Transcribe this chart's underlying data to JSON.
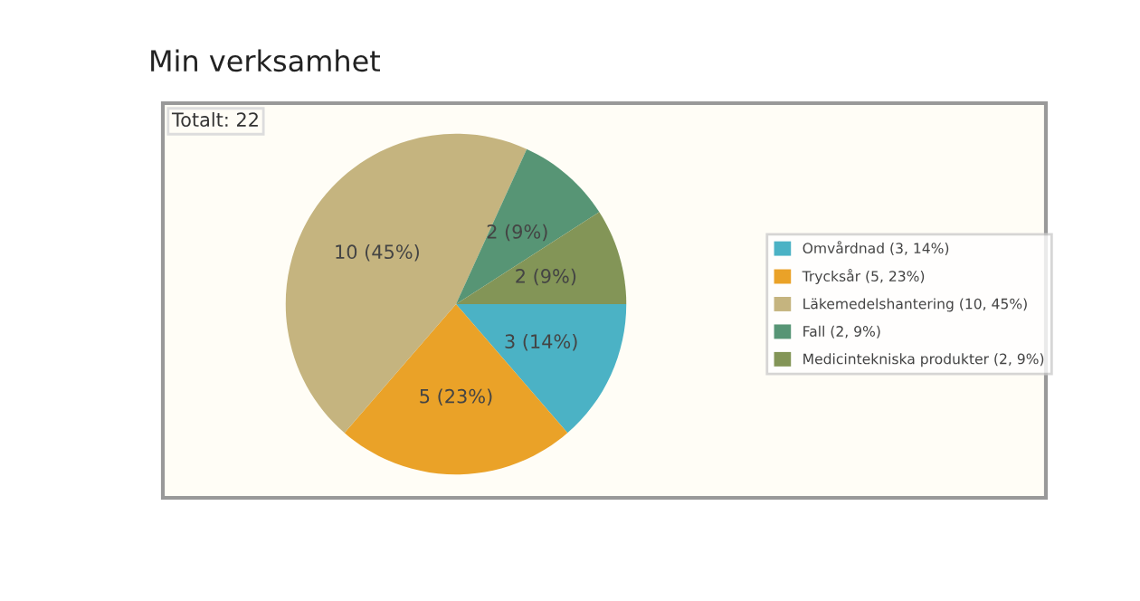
{
  "chart_data": {
    "type": "pie",
    "title": "Min verksamhet",
    "annotations": [
      "Totalt: 22"
    ],
    "categories": [
      "Omvårdnad (3, 14%)",
      "Trycksår (5, 23%)",
      "Läkemedelshantering (10, 45%)",
      "Fall (2, 9%)",
      "Medicintekniska produkter (2, 9%)"
    ],
    "values": [
      3,
      5,
      10,
      2,
      2
    ],
    "value_labels": [
      "3 (14%)",
      "5 (23%)",
      "10 (45%)",
      "2 (9%)",
      "2 (9%)"
    ],
    "colors": [
      "#4bb2c5",
      "#eaa228",
      "#c5b47f",
      "#579575",
      "#839557"
    ],
    "legend": "right"
  }
}
